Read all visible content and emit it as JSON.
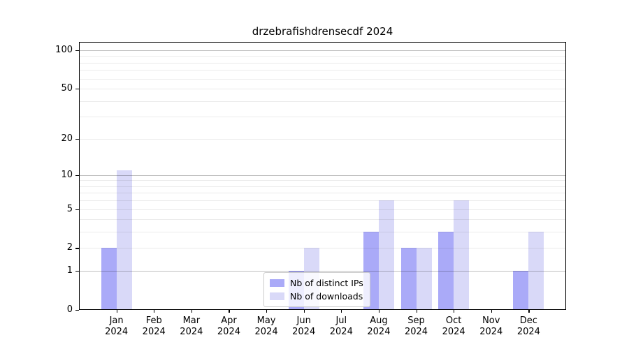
{
  "chart_data": {
    "type": "bar",
    "title": "drzebrafishdrensecdf 2024",
    "categories": [
      "Jan",
      "Feb",
      "Mar",
      "Apr",
      "May",
      "Jun",
      "Jul",
      "Aug",
      "Sep",
      "Oct",
      "Nov",
      "Dec"
    ],
    "x_tick_year": "2024",
    "series": [
      {
        "name": "Nb of distinct IPs",
        "color": "#aaaaf8",
        "values": [
          2,
          0,
          0,
          0,
          0,
          1,
          0,
          3,
          2,
          3,
          0,
          1
        ]
      },
      {
        "name": "Nb of downloads",
        "color": "#d9d9f8",
        "values": [
          11,
          0,
          0,
          0,
          0,
          2,
          0,
          6,
          2,
          6,
          0,
          3
        ]
      }
    ],
    "yscale": "log1p",
    "ylim": [
      0,
      116
    ],
    "yticks": [
      {
        "value": 100,
        "label": "100"
      },
      {
        "value": 50,
        "label": "50"
      },
      {
        "value": 20,
        "label": "20"
      },
      {
        "value": 10,
        "label": "10"
      },
      {
        "value": 5,
        "label": "5"
      },
      {
        "value": 2,
        "label": "2"
      },
      {
        "value": 1,
        "label": "1"
      },
      {
        "value": 0,
        "label": "0"
      }
    ],
    "major_gridlines": [
      1,
      10,
      100
    ],
    "minor_gridlines": [
      2,
      3,
      4,
      5,
      6,
      7,
      8,
      9,
      20,
      30,
      40,
      50,
      60,
      70,
      80,
      90
    ],
    "grid": "on",
    "legend_position": "lower center"
  }
}
